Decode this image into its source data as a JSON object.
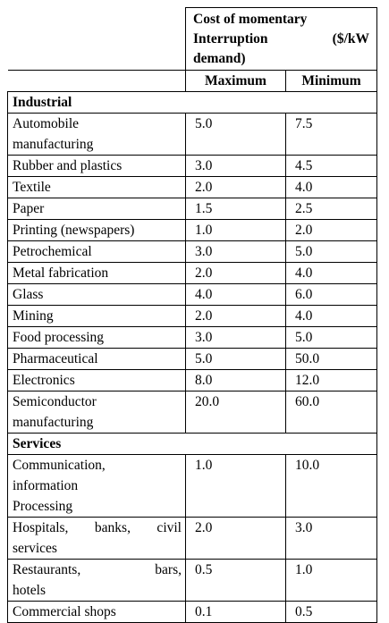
{
  "header": {
    "title_line1": "Cost of momentary",
    "title_line2_left": "Interruption",
    "title_line2_right": "($/kW",
    "title_line3": "demand)",
    "col_max": "Maximum",
    "col_min": "Minimum"
  },
  "sections": [
    {
      "name": "Industrial",
      "rows": [
        {
          "label": [
            "Automobile",
            "manufacturing"
          ],
          "max": "5.0",
          "min": "7.5"
        },
        {
          "label": [
            "Rubber and plastics"
          ],
          "max": "3.0",
          "min": "4.5"
        },
        {
          "label": [
            "Textile"
          ],
          "max": "2.0",
          "min": "4.0"
        },
        {
          "label": [
            "Paper"
          ],
          "max": "1.5",
          "min": "2.5"
        },
        {
          "label": [
            "Printing (newspapers)"
          ],
          "max": "1.0",
          "min": "2.0"
        },
        {
          "label": [
            "Petrochemical"
          ],
          "max": "3.0",
          "min": "5.0"
        },
        {
          "label": [
            "Metal fabrication"
          ],
          "max": "2.0",
          "min": "4.0"
        },
        {
          "label": [
            "Glass"
          ],
          "max": "4.0",
          "min": "6.0"
        },
        {
          "label": [
            "Mining"
          ],
          "max": "2.0",
          "min": "4.0"
        },
        {
          "label": [
            "Food processing"
          ],
          "max": "3.0",
          "min": "5.0"
        },
        {
          "label": [
            "Pharmaceutical"
          ],
          "max": "5.0",
          "min": "50.0"
        },
        {
          "label": [
            "Electronics"
          ],
          "max": "8.0",
          "min": "12.0"
        },
        {
          "label": [
            "Semiconductor",
            "manufacturing"
          ],
          "max": "20.0",
          "min": "60.0"
        }
      ]
    },
    {
      "name": "Services",
      "rows": [
        {
          "label": [
            "Communication,",
            "information",
            "Processing"
          ],
          "max": "1.0",
          "min": "10.0"
        },
        {
          "label": [
            "Hospitals, banks, civil",
            "services"
          ],
          "max": "2.0",
          "min": "3.0"
        },
        {
          "label": [
            "Restaurants,        bars,",
            "hotels"
          ],
          "max": "0.5",
          "min": "1.0"
        },
        {
          "label": [
            "Commercial shops"
          ],
          "max": "0.1",
          "min": "0.5"
        }
      ]
    }
  ]
}
